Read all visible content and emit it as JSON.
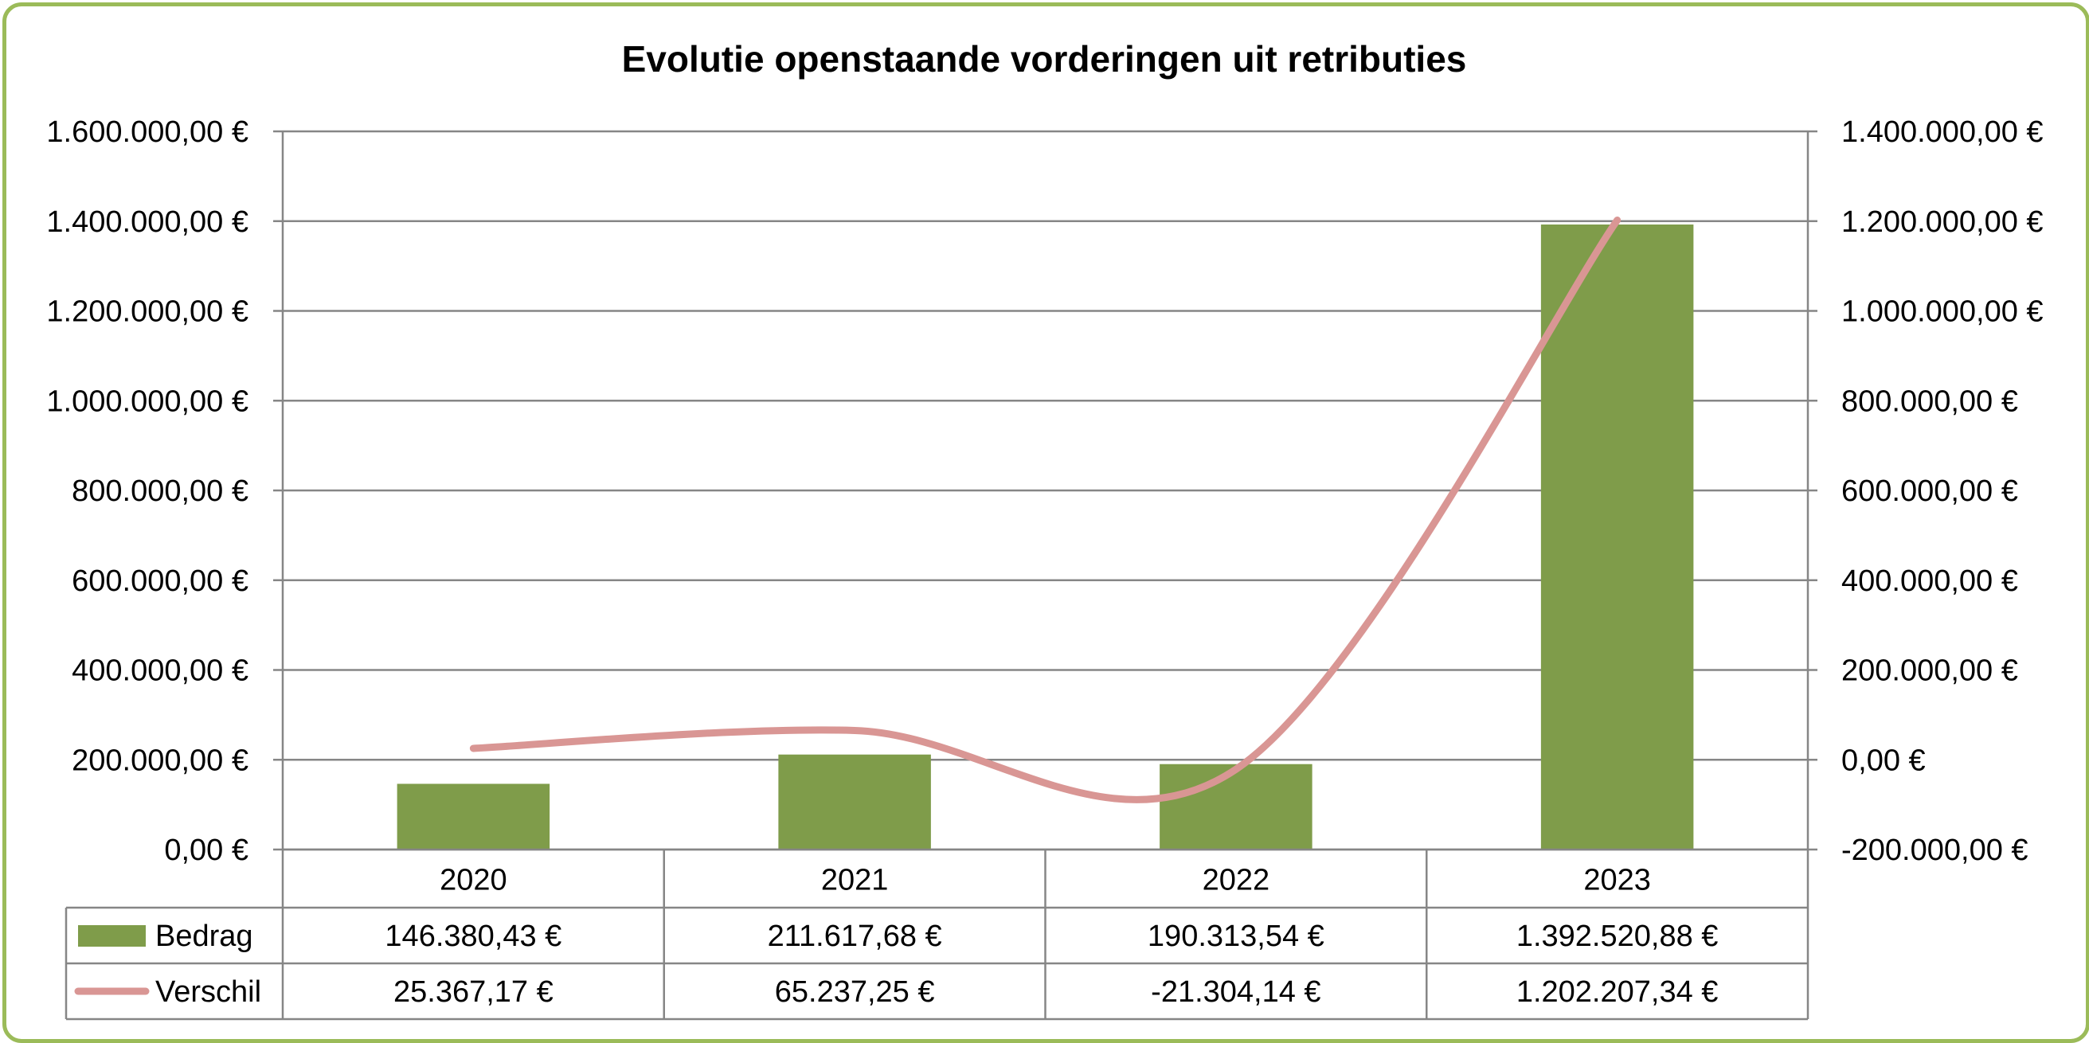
{
  "chart_data": {
    "type": "bar",
    "title": "Evolutie openstaande vorderingen uit retributies",
    "categories": [
      "2020",
      "2021",
      "2022",
      "2023"
    ],
    "series": [
      {
        "name": "Bedrag",
        "type": "bar",
        "axis": "left",
        "color": "#7F9C4A",
        "values": [
          146380.43,
          211617.68,
          190313.54,
          1392520.88
        ],
        "labels": [
          "146.380,43 €",
          "211.617,68 €",
          "190.313,54 €",
          "1.392.520,88 €"
        ]
      },
      {
        "name": "Verschil",
        "type": "line",
        "axis": "right",
        "color": "#D99694",
        "smooth": true,
        "values": [
          25367.17,
          65237.25,
          -21304.14,
          1202207.34
        ],
        "labels": [
          "25.367,17 €",
          "65.237,25 €",
          "-21.304,14 €",
          "1.202.207,34 €"
        ]
      }
    ],
    "ylim_left": [
      0,
      1600000
    ],
    "ylim_right": [
      -200000,
      1400000
    ],
    "left_ticks": [
      "0,00 €",
      "200.000,00 €",
      "400.000,00 €",
      "600.000,00 €",
      "800.000,00 €",
      "1.000.000,00 €",
      "1.200.000,00 €",
      "1.400.000,00 €",
      "1.600.000,00 €"
    ],
    "right_ticks": [
      "-200.000,00 €",
      "0,00 €",
      "200.000,00 €",
      "400.000,00 €",
      "600.000,00 €",
      "800.000,00 €",
      "1.000.000,00 €",
      "1.200.000,00 €",
      "1.400.000,00 €"
    ],
    "grid": true,
    "legend": "data-table"
  },
  "colors": {
    "border": "#9BBB59",
    "grid": "#868686"
  }
}
